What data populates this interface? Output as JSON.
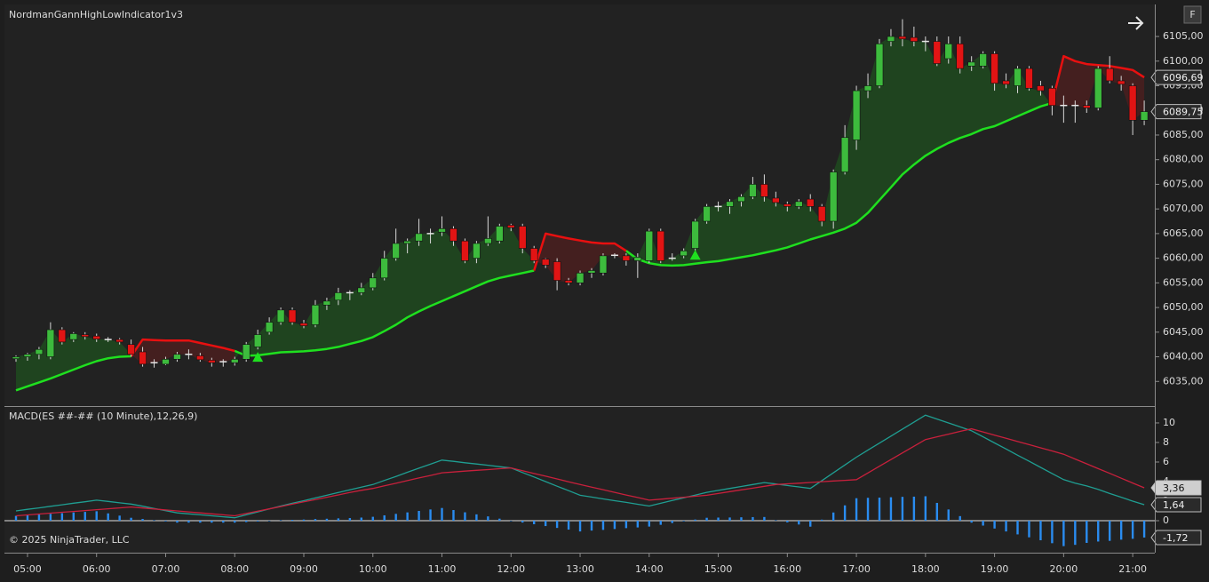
{
  "chart_data": [
    {
      "type": "candlestick",
      "title": "NordmanGannHighLowIndicator1v3",
      "x": [
        "04:50",
        "05:00",
        "05:10",
        "05:20",
        "05:30",
        "05:40",
        "05:50",
        "06:00",
        "06:10",
        "06:20",
        "06:30",
        "06:40",
        "06:50",
        "07:00",
        "07:10",
        "07:20",
        "07:30",
        "07:40",
        "07:50",
        "08:00",
        "08:10",
        "08:20",
        "08:30",
        "08:40",
        "08:50",
        "09:00",
        "09:10",
        "09:20",
        "09:30",
        "09:40",
        "09:50",
        "10:00",
        "10:10",
        "10:20",
        "10:30",
        "10:40",
        "10:50",
        "11:00",
        "11:10",
        "11:20",
        "11:30",
        "11:40",
        "11:50",
        "12:00",
        "12:10",
        "12:20",
        "12:30",
        "12:40",
        "12:50",
        "13:00",
        "13:10",
        "13:20",
        "13:30",
        "13:40",
        "13:50",
        "14:00",
        "14:10",
        "14:20",
        "14:30",
        "14:40",
        "14:50",
        "15:00",
        "15:10",
        "15:20",
        "15:30",
        "15:40",
        "15:50",
        "16:00",
        "16:10",
        "16:20",
        "16:30",
        "16:40",
        "16:50",
        "17:00",
        "17:10",
        "17:20",
        "17:30",
        "17:40",
        "17:50",
        "18:00",
        "18:10",
        "18:20",
        "18:30",
        "18:40",
        "18:50",
        "19:00",
        "19:10",
        "19:20",
        "19:30",
        "19:40",
        "19:50",
        "20:00",
        "20:10",
        "20:20",
        "20:30",
        "20:40",
        "20:50",
        "21:00",
        "21:10"
      ],
      "open": [
        6039.6,
        6040,
        6040.5,
        6040,
        6045.5,
        6043.5,
        6044.5,
        6044.2,
        6043.5,
        6043.5,
        6042.5,
        6041,
        6038.8,
        6038.5,
        6039.5,
        6040.5,
        6040.2,
        6039.3,
        6039,
        6038.8,
        6039.5,
        6042,
        6045,
        6047,
        6049.5,
        6046.8,
        6046.5,
        6050.5,
        6051.5,
        6053,
        6053,
        6054,
        6056,
        6060,
        6063,
        6063.5,
        6065,
        6065.3,
        6066,
        6063.5,
        6060,
        6063,
        6063.5,
        6066.7,
        6066.5,
        6062,
        6059.8,
        6059.3,
        6055.5,
        6055,
        6057,
        6057,
        6060.6,
        6060.5,
        6059.5,
        6059.5,
        6065.5,
        6060,
        6060.5,
        6062,
        6067.5,
        6070.5,
        6070.5,
        6071.5,
        6072.5,
        6075,
        6072.2,
        6071,
        6070.5,
        6072,
        6070.5,
        6067.5,
        6077.5,
        6084,
        6094,
        6095,
        6104,
        6105,
        6104.8,
        6104,
        6104,
        6100.5,
        6103.5,
        6099,
        6099,
        6101.5,
        6096,
        6095,
        6098.5,
        6095,
        6094.5,
        6091,
        6091,
        6091,
        6090.5,
        6098.5,
        6096,
        6095,
        6088
      ],
      "high": [
        6040.3,
        6040.8,
        6042,
        6047,
        6046,
        6045,
        6045,
        6044.7,
        6044,
        6043.8,
        6043.5,
        6042,
        6039.5,
        6040,
        6041,
        6041.5,
        6040.8,
        6039.8,
        6039.5,
        6040,
        6043,
        6045.5,
        6048,
        6050,
        6050,
        6047.5,
        6051.5,
        6052,
        6054,
        6053.5,
        6055,
        6057,
        6061.5,
        6066,
        6064,
        6068,
        6066,
        6068.5,
        6066.5,
        6064,
        6063.5,
        6068.5,
        6067,
        6067,
        6067,
        6062.5,
        6060,
        6060,
        6056,
        6057.5,
        6058,
        6061,
        6061,
        6061,
        6061,
        6066,
        6066,
        6061,
        6062,
        6068,
        6071,
        6071.5,
        6072,
        6073,
        6076.5,
        6077,
        6073.5,
        6071.5,
        6072,
        6073,
        6071,
        6078,
        6087,
        6095,
        6097.5,
        6104.5,
        6106.5,
        6108.5,
        6107,
        6105,
        6105,
        6105,
        6105,
        6101,
        6102,
        6102,
        6097.5,
        6099,
        6099,
        6096,
        6095,
        6093,
        6092,
        6092,
        6099,
        6101,
        6097,
        6095.5,
        6092
      ],
      "low": [
        6039,
        6039.2,
        6039.5,
        6039.5,
        6042.5,
        6043,
        6043.5,
        6043,
        6043,
        6042.5,
        6040,
        6038,
        6037.8,
        6038.3,
        6039,
        6039.5,
        6039,
        6038,
        6038,
        6038.2,
        6039,
        6041.5,
        6044.5,
        6046.5,
        6046.5,
        6045.8,
        6046,
        6049.5,
        6050.5,
        6051.5,
        6052.5,
        6053.5,
        6055.5,
        6059.5,
        6061,
        6062.5,
        6063,
        6064.5,
        6062.5,
        6059,
        6059,
        6062.5,
        6063,
        6065.5,
        6061,
        6059,
        6058,
        6053.5,
        6054.5,
        6054.5,
        6056,
        6056.5,
        6060,
        6058.5,
        6056,
        6059,
        6059,
        6059.5,
        6060,
        6061.5,
        6067,
        6069.5,
        6069,
        6070.5,
        6072,
        6071.5,
        6070.5,
        6069.5,
        6070,
        6069.5,
        6066.5,
        6066,
        6077,
        6082,
        6092.5,
        6094.5,
        6103,
        6103,
        6103,
        6102,
        6099,
        6099.5,
        6097.5,
        6098,
        6098.5,
        6094,
        6094.5,
        6093.5,
        6094,
        6093,
        6089,
        6087.5,
        6087.5,
        6089.5,
        6090,
        6095.5,
        6094,
        6085,
        6087
      ],
      "close": [
        6040,
        6040.5,
        6041.5,
        6045.5,
        6043,
        6044.7,
        6044.1,
        6043.6,
        6043.5,
        6043,
        6040.5,
        6038.5,
        6038.8,
        6039.5,
        6040.5,
        6040.5,
        6039.4,
        6038.8,
        6039,
        6039.5,
        6042.5,
        6044.5,
        6047,
        6049.5,
        6047,
        6046.3,
        6050.5,
        6051.3,
        6053,
        6053,
        6054,
        6056,
        6060,
        6063,
        6063.5,
        6065,
        6065,
        6066,
        6063.5,
        6059.5,
        6063,
        6064,
        6066.5,
        6066.2,
        6062,
        6059.5,
        6058.6,
        6055.5,
        6055,
        6057,
        6057.5,
        6060.5,
        6060.6,
        6059.5,
        6060.2,
        6065.5,
        6059.5,
        6060,
        6061.5,
        6067.5,
        6070.5,
        6070.5,
        6071.5,
        6072.5,
        6075,
        6072.5,
        6071.3,
        6070.5,
        6071.5,
        6070.5,
        6067.5,
        6077.5,
        6084.5,
        6094,
        6095,
        6103.5,
        6105,
        6104.5,
        6104,
        6104,
        6099.5,
        6103.5,
        6098.5,
        6099.8,
        6101.5,
        6095.5,
        6095.3,
        6098.5,
        6094.5,
        6094,
        6091,
        6091,
        6091,
        6090.5,
        6098.5,
        6096,
        6095.3,
        6088,
        6089.75
      ],
      "up_color": "#3dbb3d",
      "down_color": "#e21414",
      "doji_color": "#e6e6e6",
      "lines": [
        {
          "color": "#1fe01f",
          "fill": "#1f4a1f",
          "values": [
            6033.2,
            6034,
            6034.8,
            6035.6,
            6036.5,
            6037.4,
            6038.3,
            6039.1,
            6039.7,
            6040,
            6040.1,
            null,
            null,
            null,
            null,
            null,
            null,
            null,
            null,
            6041.2,
            6040.2,
            6040.3,
            6040.6,
            6040.9,
            6041,
            6041.1,
            6041.3,
            6041.6,
            6042,
            6042.6,
            6043.2,
            6044,
            6045.2,
            6046.5,
            6048,
            6049.2,
            6050.3,
            6051.3,
            6052.3,
            6053.3,
            6054.3,
            6055.3,
            6056,
            6056.5,
            6057,
            6057.5,
            null,
            null,
            null,
            null,
            null,
            null,
            null,
            6061.5,
            6059.8,
            6059,
            6058.6,
            6058.5,
            6058.6,
            6058.9,
            6059.2,
            6059.4,
            6059.8,
            6060.2,
            6060.6,
            6061.1,
            6061.6,
            6062.2,
            6063,
            6063.8,
            6064.5,
            6065.2,
            6066,
            6067.2,
            6069.2,
            6071.8,
            6074.4,
            6077,
            6079,
            6080.8,
            6082.2,
            6083.4,
            6084.4,
            6085.2,
            6086.2,
            6086.8,
            6087.8,
            6088.8,
            6089.8,
            6090.8,
            6091.5,
            null,
            null,
            null,
            null,
            null,
            null,
            null,
            null
          ]
        },
        {
          "color": "#e81010",
          "fill": "#4a1f1f",
          "values": [
            null,
            null,
            null,
            null,
            null,
            null,
            null,
            null,
            null,
            null,
            6040.1,
            6043.5,
            6043.4,
            6043.3,
            6043.3,
            6043.3,
            6042.8,
            6042.3,
            6041.8,
            6041.2,
            null,
            null,
            null,
            null,
            null,
            null,
            null,
            null,
            null,
            null,
            null,
            null,
            null,
            null,
            null,
            null,
            null,
            null,
            null,
            null,
            null,
            null,
            null,
            null,
            null,
            6057.5,
            6065,
            6064.5,
            6064,
            6063.6,
            6063.2,
            6063,
            6063,
            6061.5,
            null,
            null,
            null,
            null,
            null,
            null,
            null,
            null,
            null,
            null,
            null,
            null,
            null,
            null,
            null,
            null,
            null,
            null,
            null,
            null,
            null,
            null,
            null,
            null,
            null,
            null,
            null,
            null,
            null,
            null,
            null,
            null,
            null,
            null,
            null,
            null,
            6091.5,
            6101,
            6100,
            6099.4,
            6099.2,
            6099,
            6098.6,
            6098.2,
            6096.69
          ]
        }
      ],
      "signals": {
        "color": "#1fe01f",
        "x": [
          "08:20",
          "14:40"
        ],
        "values": [
          6039.9,
          6060.6
        ]
      },
      "ylim": [
        6030,
        6111.5
      ],
      "yticks": [
        {
          "value": 6035,
          "label": "6035,00"
        },
        {
          "value": 6040,
          "label": "6040,00"
        },
        {
          "value": 6045,
          "label": "6045,00"
        },
        {
          "value": 6050,
          "label": "6050,00"
        },
        {
          "value": 6055,
          "label": "6055,00"
        },
        {
          "value": 6060,
          "label": "6060,00"
        },
        {
          "value": 6065,
          "label": "6065,00"
        },
        {
          "value": 6070,
          "label": "6070,00"
        },
        {
          "value": 6075,
          "label": "6075,00"
        },
        {
          "value": 6080,
          "label": "6080,00"
        },
        {
          "value": 6085,
          "label": "6085,00"
        },
        {
          "value": 6090,
          "label": "6090,00"
        },
        {
          "value": 6095,
          "label": "6095,00"
        },
        {
          "value": 6100,
          "label": "6100,00"
        },
        {
          "value": 6105,
          "label": "6105,00"
        }
      ],
      "markers": [
        {
          "value": 6096.69,
          "label": "6096,69",
          "color": "#2a2a2a"
        },
        {
          "value": 6089.75,
          "label": "6089,75",
          "color": "#2a2a2a"
        }
      ]
    },
    {
      "type": "macd",
      "title": "MACD(ES ##-## (10 Minute),12,26,9)",
      "footer": "© 2025 NinjaTrader, LLC",
      "series": [
        {
          "color": "#1f9e92",
          "values": [
            1.0,
            1.16,
            1.31,
            1.47,
            1.63,
            1.79,
            1.94,
            2.1,
            1.97,
            1.83,
            1.7,
            1.48,
            1.25,
            1.03,
            0.8,
            0.7,
            0.6,
            0.5,
            0.4,
            0.3,
            0.6,
            0.9,
            1.2,
            1.5,
            1.78,
            2.05,
            2.33,
            2.6,
            2.88,
            3.15,
            3.43,
            3.7,
            4.12,
            4.53,
            4.95,
            5.37,
            5.78,
            6.2,
            6.07,
            5.93,
            5.8,
            5.67,
            5.53,
            5.4,
            4.93,
            4.47,
            4.0,
            3.53,
            3.07,
            2.6,
            2.42,
            2.23,
            2.05,
            1.87,
            1.68,
            1.5,
            1.78,
            2.06,
            2.34,
            2.62,
            2.9,
            3.1,
            3.3,
            3.5,
            3.7,
            3.9,
            3.75,
            3.6,
            3.45,
            3.3,
            4.1,
            4.9,
            5.7,
            6.5,
            7.22,
            7.93,
            8.65,
            9.37,
            10.08,
            10.8,
            10.4,
            10.0,
            9.6,
            9.2,
            8.58,
            7.95,
            7.33,
            6.7,
            6.08,
            5.45,
            4.83,
            4.2,
            3.84,
            3.55,
            3.2,
            2.78,
            2.4,
            2.0,
            1.64
          ]
        },
        {
          "color": "#c8203c",
          "values": [
            0.5,
            0.59,
            0.68,
            0.77,
            0.86,
            0.95,
            1.04,
            1.13,
            1.22,
            1.31,
            1.4,
            1.3,
            1.2,
            1.1,
            1.0,
            0.9,
            0.8,
            0.7,
            0.6,
            0.5,
            0.74,
            0.98,
            1.21,
            1.45,
            1.69,
            1.93,
            2.16,
            2.4,
            2.64,
            2.88,
            3.11,
            3.3,
            3.57,
            3.83,
            4.1,
            4.37,
            4.63,
            4.9,
            4.98,
            5.07,
            5.15,
            5.23,
            5.32,
            5.4,
            5.12,
            4.83,
            4.55,
            4.27,
            3.98,
            3.7,
            3.43,
            3.17,
            2.9,
            2.63,
            2.37,
            2.1,
            2.2,
            2.3,
            2.4,
            2.5,
            2.6,
            2.78,
            2.97,
            3.15,
            3.33,
            3.52,
            3.7,
            3.77,
            3.84,
            3.91,
            3.99,
            4.06,
            4.13,
            4.2,
            4.88,
            5.57,
            6.25,
            6.93,
            7.62,
            8.3,
            8.58,
            8.85,
            9.13,
            9.4,
            9.08,
            8.75,
            8.43,
            8.1,
            7.78,
            7.45,
            7.13,
            6.8,
            6.31,
            5.82,
            5.33,
            4.84,
            4.34,
            3.85,
            3.36
          ]
        }
      ],
      "histogram": {
        "color": "#2a8cf0",
        "values": [
          0.5,
          0.57,
          0.63,
          0.7,
          0.77,
          0.84,
          0.9,
          0.97,
          0.75,
          0.52,
          0.3,
          0.18,
          0.05,
          -0.07,
          -0.2,
          -0.2,
          -0.2,
          -0.2,
          -0.2,
          -0.2,
          -0.14,
          -0.08,
          -0.01,
          0.05,
          0.09,
          0.12,
          0.17,
          0.2,
          0.24,
          0.27,
          0.32,
          0.4,
          0.55,
          0.7,
          0.85,
          1.0,
          1.15,
          1.3,
          1.09,
          0.86,
          0.65,
          0.44,
          0.21,
          0.0,
          -0.19,
          -0.36,
          -0.55,
          -0.74,
          -0.91,
          -1.1,
          -1.01,
          -0.94,
          -0.85,
          -0.76,
          -0.69,
          -0.6,
          -0.42,
          -0.24,
          -0.06,
          0.12,
          0.3,
          0.32,
          0.33,
          0.35,
          0.37,
          0.38,
          0.05,
          -0.17,
          -0.39,
          -0.61,
          0.11,
          0.84,
          1.57,
          2.3,
          2.34,
          2.36,
          2.4,
          2.44,
          2.46,
          2.5,
          1.82,
          1.15,
          0.47,
          -0.2,
          -0.5,
          -0.8,
          -1.1,
          -1.4,
          -1.7,
          -2.0,
          -2.3,
          -2.6,
          -2.47,
          -2.27,
          -2.13,
          -2.06,
          -1.94,
          -1.85,
          -1.72
        ]
      },
      "ylim": [
        -3.27,
        11.45
      ],
      "yticks": [
        0,
        2,
        4,
        6,
        8,
        10
      ],
      "xticks": [
        "05:00",
        "06:00",
        "07:00",
        "08:00",
        "09:00",
        "10:00",
        "11:00",
        "12:00",
        "13:00",
        "14:00",
        "15:00",
        "16:00",
        "17:00",
        "18:00",
        "19:00",
        "20:00",
        "21:00"
      ],
      "markers": [
        {
          "value": 3.36,
          "label": "3,36",
          "color": "#cfcfcf"
        },
        {
          "value": 1.64,
          "label": "1,64",
          "color": "#2a2a2a"
        },
        {
          "value": -1.72,
          "label": "-1,72",
          "color": "#2a2a2a"
        }
      ]
    }
  ],
  "button": "F"
}
